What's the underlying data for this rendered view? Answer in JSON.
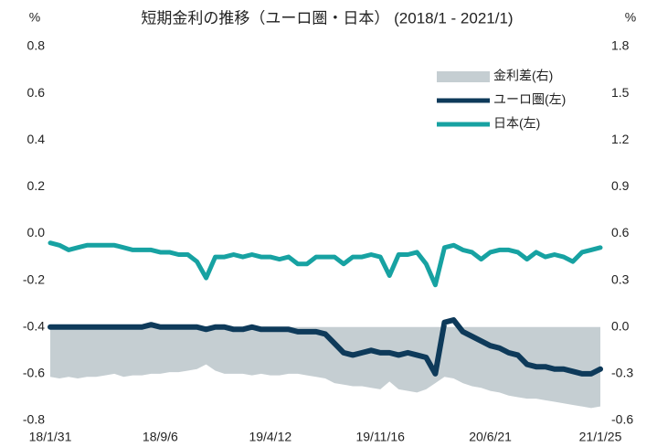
{
  "chart_data": {
    "type": "line",
    "title": "短期金利の推移（ユーロ圏・日本） (2018/1 - 2021/1)",
    "y_label": "%",
    "y2_label": "%",
    "categories": [
      "18/1/31",
      null,
      null,
      null,
      null,
      null,
      null,
      null,
      null,
      null,
      null,
      null,
      "18/9/6",
      null,
      null,
      null,
      null,
      null,
      null,
      null,
      null,
      null,
      null,
      null,
      "19/4/12",
      null,
      null,
      null,
      null,
      null,
      null,
      null,
      null,
      null,
      null,
      null,
      "19/11/16",
      null,
      null,
      null,
      null,
      null,
      null,
      null,
      null,
      null,
      null,
      null,
      "20/6/21",
      null,
      null,
      null,
      null,
      null,
      null,
      null,
      null,
      null,
      null,
      null,
      "21/1/25"
    ],
    "ylim": [
      -0.8,
      0.8
    ],
    "yticks": [
      0.8,
      0.6,
      0.4,
      0.2,
      {
        "value": 0,
        "label": "0.0"
      },
      -0.2,
      -0.4,
      -0.6,
      -0.8
    ],
    "y2lim": [
      -0.6,
      1.8
    ],
    "y2ticks": [
      1.8,
      1.5,
      1.2,
      0.9,
      0.6,
      0.3,
      {
        "value": 0,
        "label": "0.0"
      },
      -0.3,
      -0.6
    ],
    "legend": "upper right",
    "series": [
      {
        "name": "金利差(右)",
        "kind": "area",
        "axis": "y2",
        "color": "#c5ced2",
        "values": [
          -0.32,
          -0.33,
          -0.32,
          -0.33,
          -0.32,
          -0.32,
          -0.31,
          -0.3,
          -0.32,
          -0.31,
          -0.31,
          -0.3,
          -0.3,
          -0.29,
          -0.29,
          -0.28,
          -0.27,
          -0.24,
          -0.28,
          -0.3,
          -0.3,
          -0.3,
          -0.31,
          -0.3,
          -0.31,
          -0.31,
          -0.3,
          -0.3,
          -0.31,
          -0.32,
          -0.33,
          -0.36,
          -0.37,
          -0.38,
          -0.38,
          -0.39,
          -0.4,
          -0.35,
          -0.4,
          -0.41,
          -0.42,
          -0.4,
          -0.36,
          -0.32,
          -0.33,
          -0.36,
          -0.38,
          -0.39,
          -0.41,
          -0.42,
          -0.44,
          -0.45,
          -0.46,
          -0.46,
          -0.47,
          -0.48,
          -0.49,
          -0.5,
          -0.51,
          -0.52,
          -0.51
        ]
      },
      {
        "name": "ユーロ圏(左)",
        "kind": "line",
        "color": "#0e3a5a",
        "values": [
          -0.4,
          -0.4,
          -0.4,
          -0.4,
          -0.4,
          -0.4,
          -0.4,
          -0.4,
          -0.4,
          -0.4,
          -0.4,
          -0.39,
          -0.4,
          -0.4,
          -0.4,
          -0.4,
          -0.4,
          -0.41,
          -0.4,
          -0.4,
          -0.41,
          -0.41,
          -0.4,
          -0.41,
          -0.41,
          -0.41,
          -0.41,
          -0.42,
          -0.42,
          -0.42,
          -0.43,
          -0.47,
          -0.51,
          -0.52,
          -0.51,
          -0.5,
          -0.51,
          -0.51,
          -0.52,
          -0.51,
          -0.52,
          -0.53,
          -0.6,
          -0.38,
          -0.37,
          -0.42,
          -0.44,
          -0.46,
          -0.48,
          -0.49,
          -0.51,
          -0.52,
          -0.56,
          -0.57,
          -0.57,
          -0.58,
          -0.58,
          -0.59,
          -0.6,
          -0.6,
          -0.58
        ]
      },
      {
        "name": "日本(左)",
        "kind": "line",
        "color": "#17a2a2",
        "values": [
          -0.04,
          -0.05,
          -0.07,
          -0.06,
          -0.05,
          -0.05,
          -0.05,
          -0.05,
          -0.06,
          -0.07,
          -0.07,
          -0.07,
          -0.08,
          -0.08,
          -0.09,
          -0.09,
          -0.12,
          -0.19,
          -0.1,
          -0.1,
          -0.09,
          -0.1,
          -0.09,
          -0.1,
          -0.1,
          -0.11,
          -0.1,
          -0.13,
          -0.13,
          -0.1,
          -0.1,
          -0.1,
          -0.13,
          -0.1,
          -0.1,
          -0.09,
          -0.1,
          -0.18,
          -0.09,
          -0.09,
          -0.08,
          -0.13,
          -0.22,
          -0.06,
          -0.05,
          -0.07,
          -0.08,
          -0.11,
          -0.08,
          -0.07,
          -0.07,
          -0.08,
          -0.11,
          -0.08,
          -0.1,
          -0.09,
          -0.1,
          -0.12,
          -0.08,
          -0.07,
          -0.06
        ]
      }
    ]
  }
}
